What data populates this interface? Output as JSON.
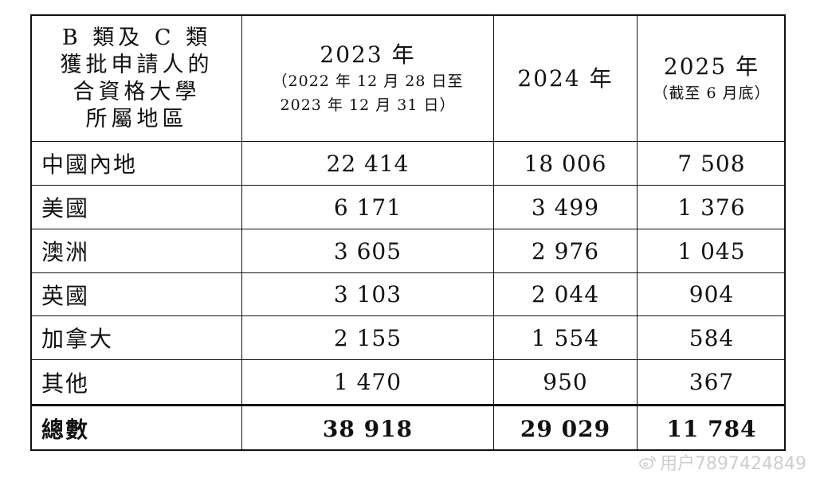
{
  "table": {
    "header": {
      "col1_lines": [
        "B 類及 C 類",
        "獲批申請人的",
        "合資格大學",
        "所屬地區"
      ],
      "col2_year": "2023 年",
      "col2_sub_line1": "（2022 年 12 月 28 日至",
      "col2_sub_line2": "2023 年 12 月 31 日）",
      "col3_year": "2024 年",
      "col4_year": "2025 年",
      "col4_sub": "（截至 6 月底）"
    },
    "rows": [
      {
        "region": "中國內地",
        "y2023": "22 414",
        "y2024": "18 006",
        "y2025": "7 508"
      },
      {
        "region": "美國",
        "y2023": "6 171",
        "y2024": "3 499",
        "y2025": "1 376"
      },
      {
        "region": "澳洲",
        "y2023": "3 605",
        "y2024": "2 976",
        "y2025": "1 045"
      },
      {
        "region": "英國",
        "y2023": "3 103",
        "y2024": "2 044",
        "y2025": "904"
      },
      {
        "region": "加拿大",
        "y2023": "2 155",
        "y2024": "1 554",
        "y2025": "584"
      },
      {
        "region": "其他",
        "y2023": "1 470",
        "y2024": "950",
        "y2025": "367"
      }
    ],
    "total": {
      "label": "總數",
      "y2023": "38 918",
      "y2024": "29 029",
      "y2025": "11 784"
    }
  },
  "watermark": {
    "text": "用户7897424849",
    "icon": "weibo-logo-icon"
  }
}
